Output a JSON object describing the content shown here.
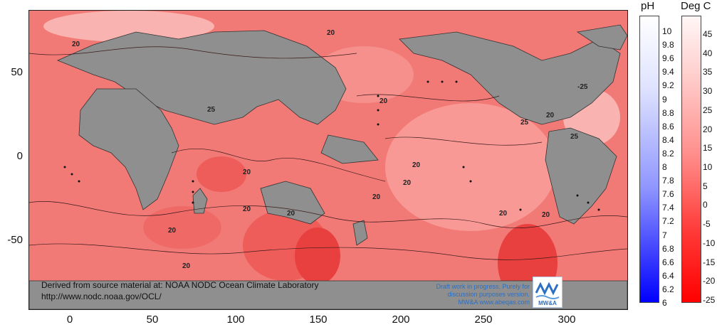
{
  "map": {
    "y_ticks": [
      "50",
      "0",
      "-50"
    ],
    "x_ticks": [
      "0",
      "50",
      "100",
      "150",
      "200",
      "250",
      "300"
    ],
    "contour_labels": [
      "20",
      "20",
      "20",
      "20",
      "25",
      "20",
      "20",
      "20",
      "20",
      "20",
      "20",
      "20",
      "-25",
      "25",
      "20",
      "25",
      "20",
      "20"
    ],
    "colors": {
      "ocean": "#f27a76",
      "land": "#8f8f8f",
      "warm_patch": "#e8403e",
      "light_patch": "#f9b3b0"
    }
  },
  "ph_scale": {
    "title": "pH",
    "labels": [
      "10",
      "9.8",
      "9.6",
      "9.4",
      "9.2",
      "9",
      "8.8",
      "8.6",
      "8.4",
      "8.2",
      "8",
      "7.8",
      "7.6",
      "7.4",
      "7.2",
      "7",
      "6.8",
      "6.6",
      "6.4",
      "6.2",
      "6"
    ]
  },
  "temp_scale": {
    "title": "Deg C",
    "labels": [
      "45",
      "40",
      "35",
      "30",
      "25",
      "20",
      "15",
      "10",
      "5",
      "0",
      "-5",
      "-10",
      "-15",
      "-20",
      "-25"
    ]
  },
  "notes": {
    "source_line1": "Derived from source material at: NOAA NODC Ocean Climate Laboratory",
    "source_line2": "http://www.nodc.noaa.gov/OCL/",
    "draft_line1": "Draft work in progress.  Purely for",
    "draft_line2": "discussion purposes version.",
    "draft_line3": "MW&A www.abeqas.com",
    "logo_text": "MW&A"
  }
}
